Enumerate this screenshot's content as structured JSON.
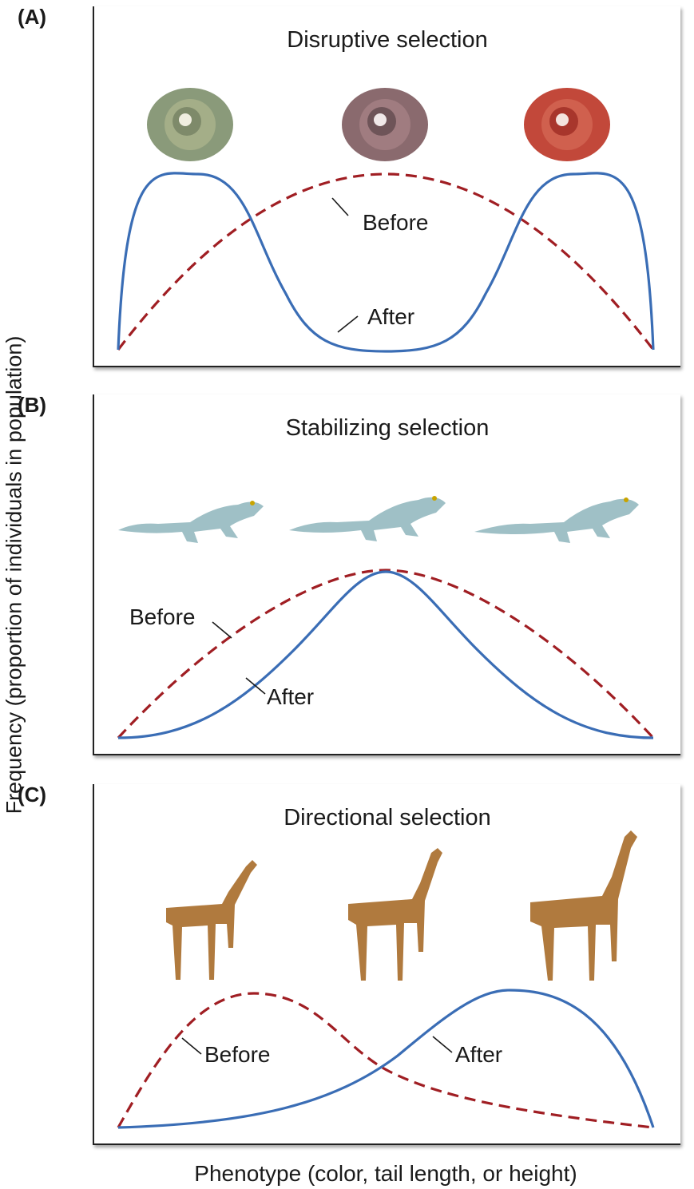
{
  "axes": {
    "ylabel": "Frequency (proportion of individuals in population)",
    "xlabel": "Phenotype (color, tail length, or height)"
  },
  "panels": [
    {
      "letter": "(A)",
      "title": "Disruptive selection",
      "organism": "snail-shell",
      "before_label": "Before",
      "after_label": "After",
      "colors": [
        "#8a9a7a",
        "#8a6a6e",
        "#c2483a"
      ]
    },
    {
      "letter": "(B)",
      "title": "Stabilizing selection",
      "organism": "gecko",
      "before_label": "Before",
      "after_label": "After",
      "colors": [
        "#9fc0c6",
        "#9fc0c6",
        "#9fc0c6"
      ]
    },
    {
      "letter": "(C)",
      "title": "Directional selection",
      "organism": "giraffe",
      "before_label": "Before",
      "after_label": "After",
      "colors": [
        "#b07a3e",
        "#b07a3e",
        "#b07a3e"
      ]
    }
  ],
  "styles": {
    "before_color": "#a01e23",
    "after_color": "#3a6db5"
  }
}
